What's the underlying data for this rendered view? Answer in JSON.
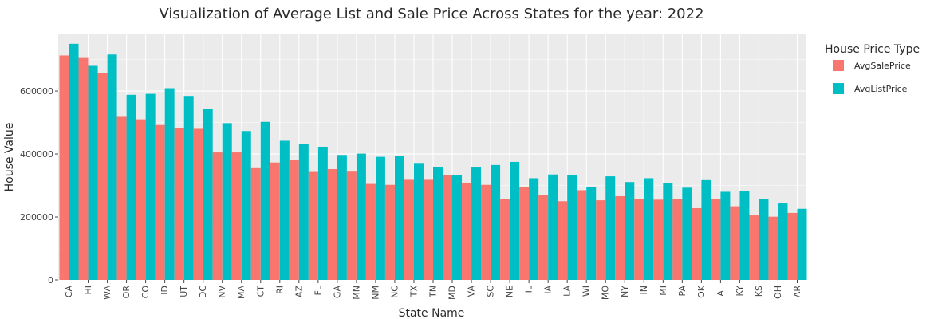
{
  "chart_data": {
    "type": "bar",
    "title": "Visualization of Average List and Sale Price Across States for the year: 2022",
    "xlabel": "State Name",
    "ylabel": "House Value",
    "ylim": [
      0,
      780000
    ],
    "y_ticks": [
      0,
      200000,
      400000,
      600000
    ],
    "grid": true,
    "legend": {
      "title": "House Price Type",
      "placement": "right"
    },
    "categories": [
      "CA",
      "HI",
      "WA",
      "OR",
      "CO",
      "ID",
      "UT",
      "DC",
      "NV",
      "MA",
      "CT",
      "RI",
      "AZ",
      "FL",
      "GA",
      "MN",
      "NM",
      "NC",
      "TX",
      "TN",
      "MD",
      "VA",
      "SC",
      "NE",
      "IL",
      "IA",
      "LA",
      "WI",
      "MO",
      "NY",
      "IN",
      "MI",
      "PA",
      "OK",
      "AL",
      "KY",
      "KS",
      "OH",
      "AR"
    ],
    "series": [
      {
        "name": "AvgSalePrice",
        "color": "#F8766D",
        "values": [
          713000,
          705000,
          656000,
          518000,
          510000,
          492000,
          483000,
          480000,
          405000,
          405000,
          355000,
          373000,
          382000,
          343000,
          352000,
          344000,
          305000,
          302000,
          318000,
          318000,
          334000,
          309000,
          302000,
          256000,
          295000,
          270000,
          250000,
          285000,
          253000,
          266000,
          256000,
          255000,
          256000,
          228000,
          258000,
          234000,
          205000,
          201000,
          213000
        ]
      },
      {
        "name": "AvgListPrice",
        "color": "#00BFC4",
        "values": [
          750000,
          680000,
          716000,
          588000,
          591000,
          609000,
          582000,
          542000,
          498000,
          473000,
          502000,
          442000,
          432000,
          423000,
          397000,
          401000,
          391000,
          393000,
          369000,
          359000,
          334000,
          357000,
          365000,
          375000,
          323000,
          335000,
          333000,
          296000,
          329000,
          311000,
          323000,
          308000,
          293000,
          317000,
          280000,
          283000,
          256000,
          243000,
          226000
        ]
      }
    ]
  }
}
